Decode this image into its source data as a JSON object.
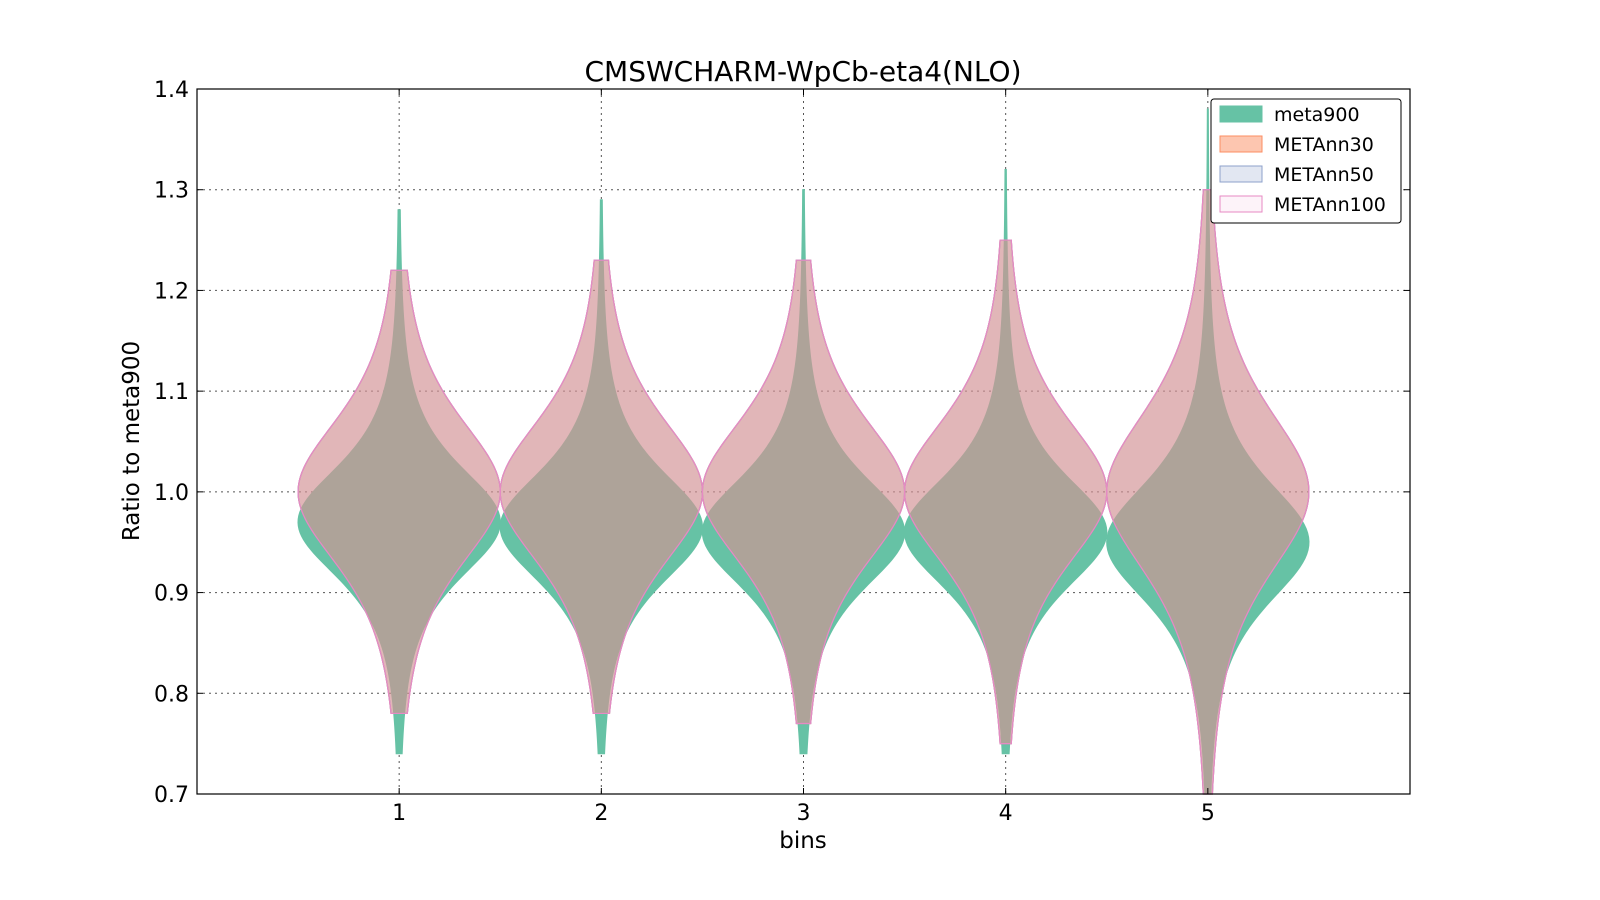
{
  "chart_data": {
    "type": "violin",
    "title": "CMSWCHARM-WpCb-eta4(NLO)",
    "xlabel": "bins",
    "ylabel": "Ratio to meta900",
    "ylim": [
      0.7,
      1.4
    ],
    "yticks": [
      "0.7",
      "0.8",
      "0.9",
      "1.0",
      "1.1",
      "1.2",
      "1.3",
      "1.4"
    ],
    "xlim": [
      0,
      6
    ],
    "categories": [
      "1",
      "2",
      "3",
      "4",
      "5"
    ],
    "grid": true,
    "legend_position": "top-right",
    "series": [
      {
        "name": "meta900",
        "color": "#66c2a5",
        "fill_opacity": 1.0,
        "stats": [
          {
            "center": 0.97,
            "spread": 0.06,
            "min": 0.74,
            "max": 1.28,
            "halfwidth": 0.5
          },
          {
            "center": 0.965,
            "spread": 0.06,
            "min": 0.74,
            "max": 1.29,
            "halfwidth": 0.5
          },
          {
            "center": 0.96,
            "spread": 0.06,
            "min": 0.74,
            "max": 1.3,
            "halfwidth": 0.5
          },
          {
            "center": 0.96,
            "spread": 0.06,
            "min": 0.74,
            "max": 1.32,
            "halfwidth": 0.5
          },
          {
            "center": 0.95,
            "spread": 0.065,
            "min": 0.7,
            "max": 1.38,
            "halfwidth": 0.5
          }
        ]
      },
      {
        "name": "METAnn30",
        "color": "#fc8d62",
        "fill_opacity": 0.5,
        "stats": [
          {
            "center": 1.0,
            "spread": 0.08,
            "min": 0.78,
            "max": 1.22,
            "halfwidth": 0.5
          },
          {
            "center": 1.0,
            "spread": 0.08,
            "min": 0.78,
            "max": 1.23,
            "halfwidth": 0.5
          },
          {
            "center": 1.0,
            "spread": 0.08,
            "min": 0.77,
            "max": 1.23,
            "halfwidth": 0.5
          },
          {
            "center": 1.0,
            "spread": 0.08,
            "min": 0.75,
            "max": 1.25,
            "halfwidth": 0.5
          },
          {
            "center": 1.0,
            "spread": 0.09,
            "min": 0.7,
            "max": 1.3,
            "halfwidth": 0.5
          }
        ]
      },
      {
        "name": "METAnn50",
        "color": "#8da0cb",
        "fill_opacity": 0.25,
        "stats": [
          {
            "center": 1.0,
            "spread": 0.08,
            "min": 0.78,
            "max": 1.22,
            "halfwidth": 0.5
          },
          {
            "center": 1.0,
            "spread": 0.08,
            "min": 0.78,
            "max": 1.23,
            "halfwidth": 0.5
          },
          {
            "center": 1.0,
            "spread": 0.08,
            "min": 0.77,
            "max": 1.23,
            "halfwidth": 0.5
          },
          {
            "center": 1.0,
            "spread": 0.08,
            "min": 0.75,
            "max": 1.25,
            "halfwidth": 0.5
          },
          {
            "center": 1.0,
            "spread": 0.09,
            "min": 0.7,
            "max": 1.3,
            "halfwidth": 0.5
          }
        ]
      },
      {
        "name": "METAnn100",
        "color": "#e78ac3",
        "fill_opacity": 0.1,
        "stats": [
          {
            "center": 1.0,
            "spread": 0.08,
            "min": 0.78,
            "max": 1.22,
            "halfwidth": 0.5
          },
          {
            "center": 1.0,
            "spread": 0.08,
            "min": 0.78,
            "max": 1.23,
            "halfwidth": 0.5
          },
          {
            "center": 1.0,
            "spread": 0.08,
            "min": 0.77,
            "max": 1.23,
            "halfwidth": 0.5
          },
          {
            "center": 1.0,
            "spread": 0.08,
            "min": 0.75,
            "max": 1.25,
            "halfwidth": 0.5
          },
          {
            "center": 1.0,
            "spread": 0.09,
            "min": 0.7,
            "max": 1.3,
            "halfwidth": 0.5
          }
        ]
      }
    ]
  }
}
